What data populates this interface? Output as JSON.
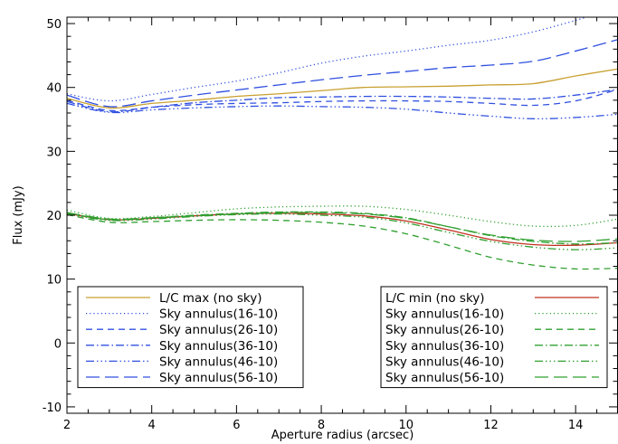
{
  "chart_data": {
    "type": "line",
    "xlabel": "Aperture radius (arcsec)",
    "ylabel": "Flux (mJy)",
    "xlim": [
      2,
      15
    ],
    "ylim": [
      -11,
      51
    ],
    "xticks": [
      2,
      4,
      6,
      8,
      10,
      12,
      14
    ],
    "yticks": [
      -10,
      0,
      10,
      20,
      30,
      40,
      50
    ],
    "grid": false,
    "legends": [
      {
        "placement": "bottom-left",
        "entries": [
          0,
          1,
          2,
          3,
          4,
          5
        ]
      },
      {
        "placement": "bottom-right",
        "entries": [
          6,
          7,
          8,
          9,
          10,
          11
        ]
      }
    ],
    "series": [
      {
        "name": "L/C max (no sky)",
        "color": "#c8a030",
        "dash": "solid",
        "x": [
          2,
          3,
          4,
          5,
          6,
          7,
          8,
          9,
          10,
          11,
          12,
          13,
          14,
          15
        ],
        "y": [
          38.3,
          36.8,
          37.5,
          38.0,
          38.6,
          39.0,
          39.5,
          40.0,
          40.1,
          40.2,
          40.4,
          40.6,
          41.8,
          42.9
        ]
      },
      {
        "name": "Sky annulus(16-10)",
        "color": "#3050e0",
        "dash": "dotted",
        "x": [
          2,
          3,
          4,
          5,
          6,
          7,
          8,
          9,
          10,
          11,
          12,
          13,
          14,
          15
        ],
        "y": [
          39.0,
          37.9,
          38.9,
          40.0,
          41.0,
          42.3,
          43.8,
          44.9,
          45.7,
          46.6,
          47.4,
          48.7,
          50.5,
          52.5
        ]
      },
      {
        "name": "Sky annulus(26-10)",
        "color": "#3050e0",
        "dash": "dashed",
        "x": [
          2,
          3,
          4,
          5,
          6,
          7,
          8,
          9,
          10,
          11,
          12,
          13,
          14,
          15
        ],
        "y": [
          38.0,
          36.4,
          36.9,
          37.3,
          37.5,
          37.6,
          37.8,
          37.9,
          37.9,
          37.8,
          37.5,
          37.2,
          37.9,
          39.7
        ]
      },
      {
        "name": "Sky annulus(36-10)",
        "color": "#3050e0",
        "dash": "dashdot",
        "x": [
          2,
          3,
          4,
          5,
          6,
          7,
          8,
          9,
          10,
          11,
          12,
          13,
          14,
          15
        ],
        "y": [
          37.8,
          36.2,
          36.9,
          37.6,
          38.0,
          38.4,
          38.5,
          38.6,
          38.6,
          38.5,
          38.3,
          38.2,
          38.8,
          39.7
        ]
      },
      {
        "name": "Sky annulus(46-10)",
        "color": "#3050e0",
        "dash": "dashdotdotdot",
        "x": [
          2,
          3,
          4,
          5,
          6,
          7,
          8,
          9,
          10,
          11,
          12,
          13,
          14,
          15
        ],
        "y": [
          37.5,
          36.1,
          36.5,
          36.8,
          37.0,
          37.1,
          37.0,
          36.9,
          36.6,
          36.0,
          35.5,
          35.1,
          35.3,
          35.8
        ]
      },
      {
        "name": "Sky annulus(56-10)",
        "color": "#3050e0",
        "dash": "longdash",
        "x": [
          2,
          3,
          4,
          5,
          6,
          7,
          8,
          9,
          10,
          11,
          12,
          13,
          14,
          15
        ],
        "y": [
          38.8,
          37.0,
          37.9,
          38.8,
          39.6,
          40.4,
          41.2,
          41.9,
          42.5,
          43.1,
          43.5,
          44.1,
          45.7,
          47.5
        ]
      },
      {
        "name": "L/C min (no sky)",
        "color": "#c03020",
        "dash": "solid",
        "x": [
          2,
          3,
          4,
          5,
          6,
          7,
          8,
          9,
          10,
          11,
          12,
          13,
          14,
          15
        ],
        "y": [
          20.3,
          19.3,
          19.5,
          19.9,
          20.2,
          20.3,
          20.2,
          19.9,
          19.1,
          17.7,
          16.2,
          15.4,
          15.3,
          15.7
        ]
      },
      {
        "name": "Sky annulus(16-10)",
        "color": "#30a030",
        "dash": "dotted",
        "x": [
          2,
          3,
          4,
          5,
          6,
          7,
          8,
          9,
          10,
          11,
          12,
          13,
          14,
          15
        ],
        "y": [
          20.8,
          19.5,
          19.8,
          20.4,
          21.0,
          21.3,
          21.4,
          21.4,
          20.9,
          20.0,
          19.0,
          18.3,
          18.4,
          19.4
        ]
      },
      {
        "name": "Sky annulus(26-10)",
        "color": "#30a030",
        "dash": "dashed",
        "x": [
          2,
          3,
          4,
          5,
          6,
          7,
          8,
          9,
          10,
          11,
          12,
          13,
          14,
          15
        ],
        "y": [
          20.1,
          18.9,
          19.0,
          19.2,
          19.3,
          19.2,
          18.9,
          18.3,
          17.1,
          15.3,
          13.4,
          12.2,
          11.6,
          11.7
        ]
      },
      {
        "name": "Sky annulus(36-10)",
        "color": "#30a030",
        "dash": "dashdot",
        "x": [
          2,
          3,
          4,
          5,
          6,
          7,
          8,
          9,
          10,
          11,
          12,
          13,
          14,
          15
        ],
        "y": [
          20.4,
          19.3,
          19.6,
          20.0,
          20.3,
          20.5,
          20.5,
          20.3,
          19.6,
          18.2,
          16.8,
          15.9,
          15.5,
          15.7
        ]
      },
      {
        "name": "Sky annulus(46-10)",
        "color": "#30a030",
        "dash": "dashdotdotdot",
        "x": [
          2,
          3,
          4,
          5,
          6,
          7,
          8,
          9,
          10,
          11,
          12,
          13,
          14,
          15
        ],
        "y": [
          20.2,
          19.2,
          19.4,
          19.8,
          20.1,
          20.2,
          20.0,
          19.7,
          18.8,
          17.3,
          15.9,
          15.0,
          14.6,
          14.9
        ]
      },
      {
        "name": "Sky annulus(56-10)",
        "color": "#30a030",
        "dash": "longdash",
        "x": [
          2,
          3,
          4,
          5,
          6,
          7,
          8,
          9,
          10,
          11,
          12,
          13,
          14,
          15
        ],
        "y": [
          20.4,
          19.4,
          19.6,
          19.9,
          20.2,
          20.4,
          20.4,
          20.2,
          19.5,
          18.2,
          16.9,
          16.1,
          15.9,
          16.3
        ]
      }
    ]
  }
}
